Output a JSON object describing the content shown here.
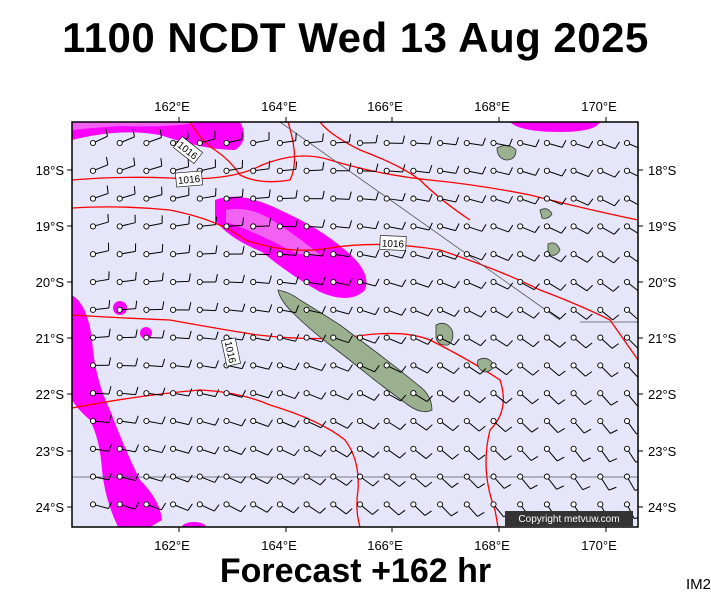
{
  "header": {
    "title": "1100 NCDT Wed 13 Aug 2025"
  },
  "footer": {
    "forecast": "Forecast +162 hr",
    "image_tag": "IM2"
  },
  "map": {
    "longitude_ticks": [
      "162°E",
      "164°E",
      "166°E",
      "168°E",
      "170°E"
    ],
    "latitude_ticks": [
      "18°S",
      "19°S",
      "20°S",
      "21°S",
      "22°S",
      "23°S",
      "24°S"
    ],
    "isobar_labels": [
      "1016",
      "1016",
      "1016",
      "1016"
    ],
    "copyright": "Copyright metvuw.com",
    "colors": {
      "background": "#e6e6fa",
      "rain": "#ff00ff",
      "rain_light": "#ee82ee",
      "isobar": "#ff0000",
      "land": "#9bb08f"
    }
  }
}
